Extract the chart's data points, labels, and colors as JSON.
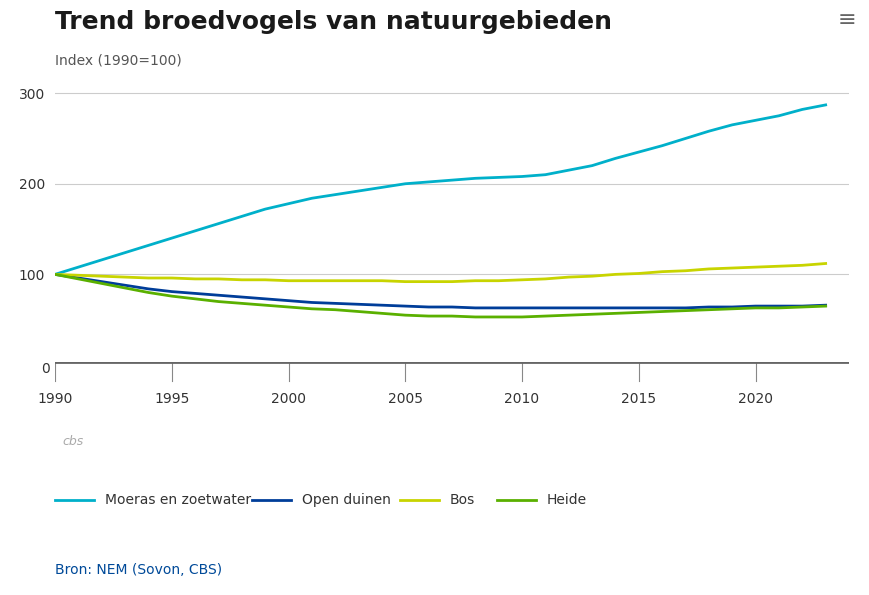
{
  "title": "Trend broedvogels van natuurgebieden",
  "ylabel": "Index (1990=100)",
  "source": "Bron: NEM (Sovon, CBS)",
  "background_color": "#ffffff",
  "plot_bg_color": "#ffffff",
  "strip_bg_color": "#e8e8e8",
  "outer_bg_color": "#f0f0f0",
  "ylim": [
    0,
    320
  ],
  "xlim": [
    1990,
    2024
  ],
  "yticks": [
    100,
    200,
    300
  ],
  "xticks": [
    1990,
    1995,
    2000,
    2005,
    2010,
    2015,
    2020
  ],
  "series": {
    "Moeras en zoetwater": {
      "color": "#00b0ca",
      "linewidth": 2.0,
      "x": [
        1990,
        1991,
        1992,
        1993,
        1994,
        1995,
        1996,
        1997,
        1998,
        1999,
        2000,
        2001,
        2002,
        2003,
        2004,
        2005,
        2006,
        2007,
        2008,
        2009,
        2010,
        2011,
        2012,
        2013,
        2014,
        2015,
        2016,
        2017,
        2018,
        2019,
        2020,
        2021,
        2022,
        2023
      ],
      "y": [
        100,
        108,
        116,
        124,
        132,
        140,
        148,
        156,
        164,
        172,
        178,
        184,
        188,
        192,
        196,
        200,
        202,
        204,
        206,
        207,
        208,
        210,
        215,
        220,
        228,
        235,
        242,
        250,
        258,
        265,
        270,
        275,
        282,
        287
      ]
    },
    "Open duinen": {
      "color": "#003d99",
      "linewidth": 2.0,
      "x": [
        1990,
        1991,
        1992,
        1993,
        1994,
        1995,
        1996,
        1997,
        1998,
        1999,
        2000,
        2001,
        2002,
        2003,
        2004,
        2005,
        2006,
        2007,
        2008,
        2009,
        2010,
        2011,
        2012,
        2013,
        2014,
        2015,
        2016,
        2017,
        2018,
        2019,
        2020,
        2021,
        2022,
        2023
      ],
      "y": [
        100,
        96,
        92,
        88,
        84,
        81,
        79,
        77,
        75,
        73,
        71,
        69,
        68,
        67,
        66,
        65,
        64,
        64,
        63,
        63,
        63,
        63,
        63,
        63,
        63,
        63,
        63,
        63,
        64,
        64,
        65,
        65,
        65,
        66
      ]
    },
    "Bos": {
      "color": "#c8d400",
      "linewidth": 2.0,
      "x": [
        1990,
        1991,
        1992,
        1993,
        1994,
        1995,
        1996,
        1997,
        1998,
        1999,
        2000,
        2001,
        2002,
        2003,
        2004,
        2005,
        2006,
        2007,
        2008,
        2009,
        2010,
        2011,
        2012,
        2013,
        2014,
        2015,
        2016,
        2017,
        2018,
        2019,
        2020,
        2021,
        2022,
        2023
      ],
      "y": [
        100,
        99,
        98,
        97,
        96,
        96,
        95,
        95,
        94,
        94,
        93,
        93,
        93,
        93,
        93,
        92,
        92,
        92,
        93,
        93,
        94,
        95,
        97,
        98,
        100,
        101,
        103,
        104,
        106,
        107,
        108,
        109,
        110,
        112
      ]
    },
    "Heide": {
      "color": "#5ab000",
      "linewidth": 2.0,
      "x": [
        1990,
        1991,
        1992,
        1993,
        1994,
        1995,
        1996,
        1997,
        1998,
        1999,
        2000,
        2001,
        2002,
        2003,
        2004,
        2005,
        2006,
        2007,
        2008,
        2009,
        2010,
        2011,
        2012,
        2013,
        2014,
        2015,
        2016,
        2017,
        2018,
        2019,
        2020,
        2021,
        2022,
        2023
      ],
      "y": [
        100,
        95,
        90,
        85,
        80,
        76,
        73,
        70,
        68,
        66,
        64,
        62,
        61,
        59,
        57,
        55,
        54,
        54,
        53,
        53,
        53,
        54,
        55,
        56,
        57,
        58,
        59,
        60,
        61,
        62,
        63,
        63,
        64,
        65
      ]
    }
  },
  "legend_order": [
    "Moeras en zoetwater",
    "Open duinen",
    "Bos",
    "Heide"
  ],
  "title_fontsize": 18,
  "label_fontsize": 10,
  "tick_fontsize": 10,
  "legend_fontsize": 10,
  "source_fontsize": 10
}
